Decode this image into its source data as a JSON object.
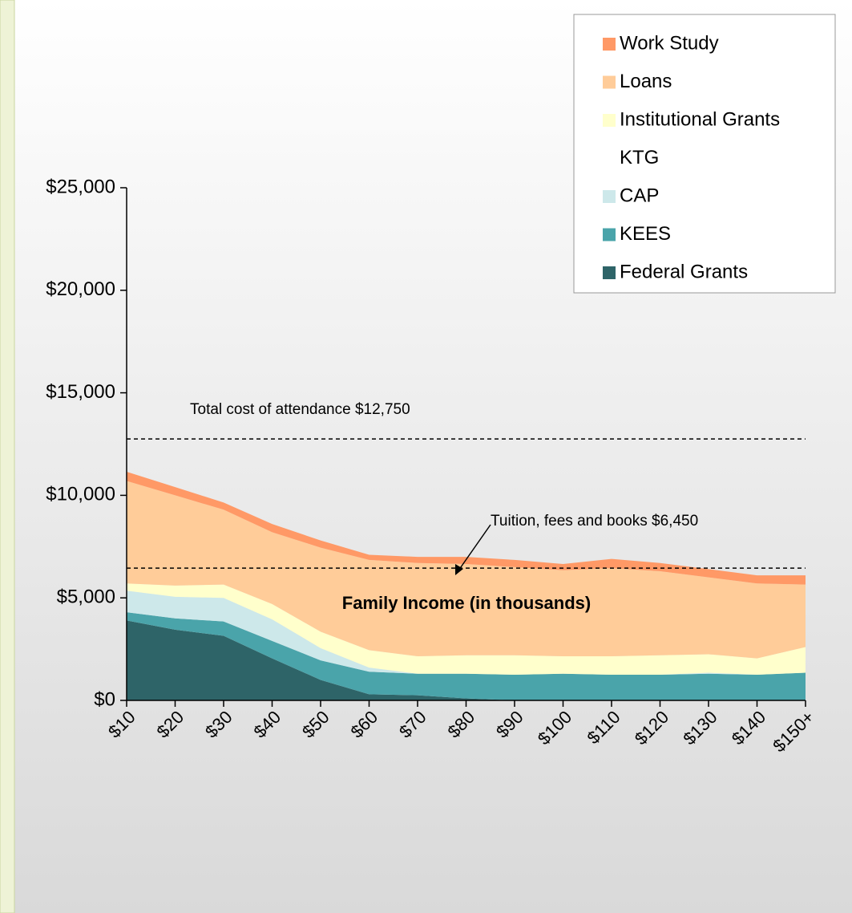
{
  "chart_data": {
    "type": "stacked_area",
    "xlabel": "Family Income (in thousands)",
    "categories": [
      "$10",
      "$20",
      "$30",
      "$40",
      "$50",
      "$60",
      "$70",
      "$80",
      "$90",
      "$100",
      "$110",
      "$120",
      "$130",
      "$140",
      "$150+"
    ],
    "series": [
      {
        "name": "Federal Grants",
        "color": "#2e6468",
        "values": [
          3900,
          3450,
          3150,
          2050,
          1000,
          300,
          250,
          100,
          0,
          0,
          0,
          0,
          0,
          0,
          0
        ]
      },
      {
        "name": "KEES",
        "color": "#4aa4aa",
        "values": [
          400,
          550,
          700,
          850,
          950,
          1100,
          1050,
          1200,
          1250,
          1300,
          1250,
          1250,
          1300,
          1250,
          1350
        ]
      },
      {
        "name": "CAP",
        "color": "#cde8ea",
        "values": [
          1050,
          1050,
          1150,
          1050,
          600,
          200,
          0,
          0,
          0,
          0,
          0,
          0,
          50,
          0,
          0
        ]
      },
      {
        "name": "KTG",
        "color": "#ffffff",
        "values": [
          0,
          0,
          0,
          0,
          0,
          0,
          0,
          0,
          0,
          0,
          0,
          0,
          0,
          0,
          0
        ]
      },
      {
        "name": "Institutional Grants",
        "color": "#ffffcc",
        "values": [
          350,
          550,
          650,
          750,
          800,
          850,
          850,
          900,
          950,
          850,
          900,
          950,
          900,
          800,
          1250
        ]
      },
      {
        "name": "Loans",
        "color": "#ffcc99",
        "values": [
          5000,
          4400,
          3650,
          3500,
          4100,
          4400,
          4550,
          4450,
          4300,
          4200,
          4300,
          4100,
          3750,
          3650,
          3050
        ]
      },
      {
        "name": "Work Study",
        "color": "#ff9966",
        "values": [
          450,
          400,
          350,
          400,
          350,
          250,
          300,
          350,
          350,
          300,
          450,
          400,
          400,
          400,
          450
        ]
      }
    ],
    "ylim": [
      0,
      25000
    ],
    "yticks": [
      {
        "value": 0,
        "label": "$0"
      },
      {
        "value": 5000,
        "label": "$5,000"
      },
      {
        "value": 10000,
        "label": "$10,000"
      },
      {
        "value": 15000,
        "label": "$15,000"
      },
      {
        "value": 20000,
        "label": "$20,000"
      },
      {
        "value": 25000,
        "label": "$25,000"
      }
    ],
    "annotations": [
      {
        "text": "Total cost of attendance $12,750",
        "value": 12750
      },
      {
        "text": "Tuition, fees and books $6,450",
        "value": 6450
      }
    ],
    "legend": "upper right"
  }
}
